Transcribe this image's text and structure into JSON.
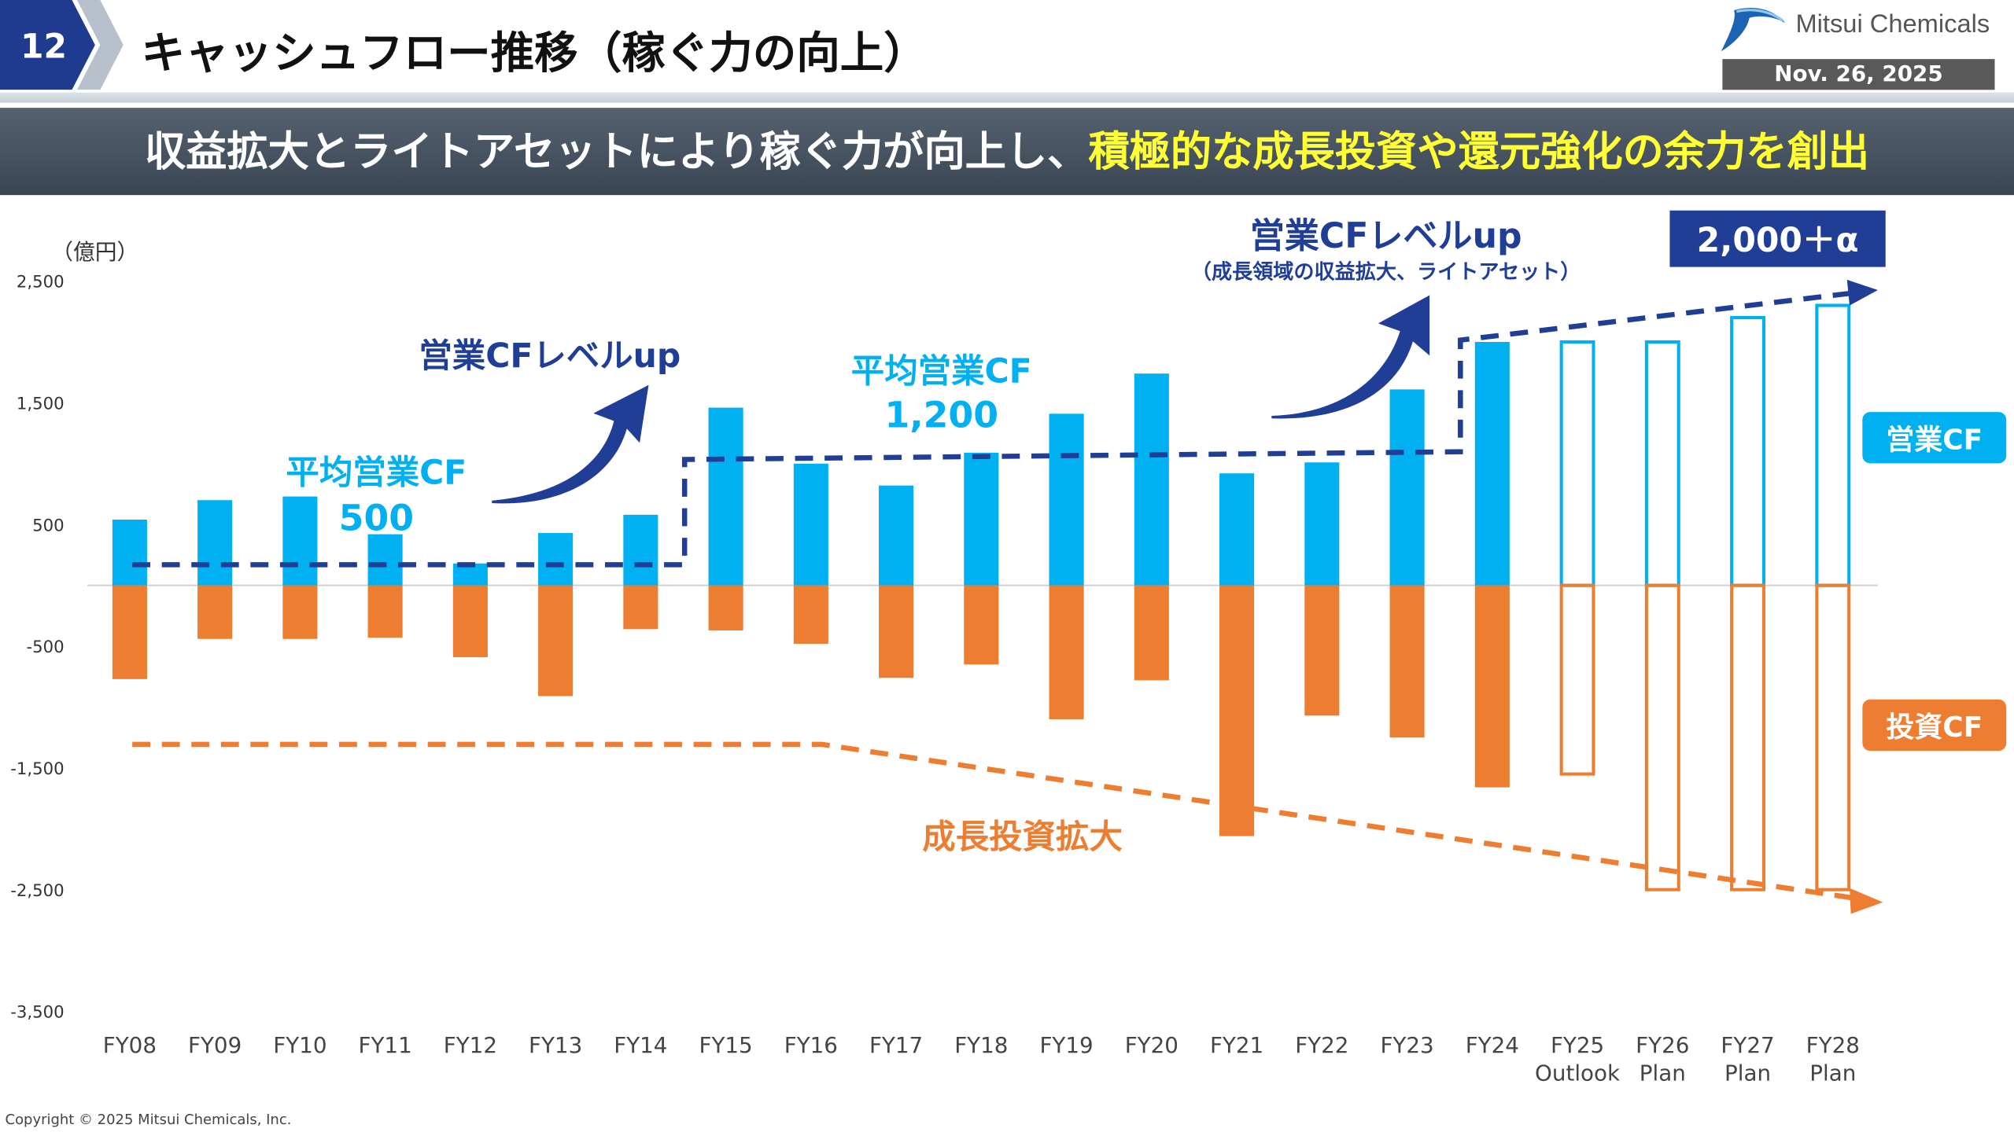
{
  "header": {
    "page_number": "12",
    "title": "キャッシュフロー推移（稼ぐ力の向上）",
    "logo_text": "Mitsui Chemicals",
    "date": "Nov. 26, 2025"
  },
  "banner": {
    "text_main": "収益拡大とライトアセットにより稼ぐ力が向上し、",
    "text_highlight": "積極的な成長投資や還元強化の余力を創出"
  },
  "footer": {
    "copyright": "Copyright © 2025 Mitsui Chemicals, Inc."
  },
  "colors": {
    "operating_cf": "#00b0f0",
    "investing_cf": "#ed7d31",
    "navy": "#203e96",
    "banner": "#3b4654",
    "highlight": "#ffff33"
  },
  "chart_data": {
    "type": "bar",
    "unit_label": "（億円）",
    "ylim": [
      -3500,
      2500
    ],
    "yticks": [
      2500,
      1500,
      500,
      -500,
      -1500,
      -2500,
      -3500
    ],
    "ytick_labels": [
      "2,500",
      "1,500",
      "500",
      "-500",
      "-1,500",
      "-2,500",
      "-3,500"
    ],
    "categories": [
      "FY08",
      "FY09",
      "FY10",
      "FY11",
      "FY12",
      "FY13",
      "FY14",
      "FY15",
      "FY16",
      "FY17",
      "FY18",
      "FY19",
      "FY20",
      "FY21",
      "FY22",
      "FY23",
      "FY24",
      "FY25",
      "FY26",
      "FY27",
      "FY28"
    ],
    "category_sublabels": [
      "",
      "",
      "",
      "",
      "",
      "",
      "",
      "",
      "",
      "",
      "",
      "",
      "",
      "",
      "",
      "",
      "",
      "Outlook",
      "Plan",
      "Plan",
      "Plan"
    ],
    "forecast_from_index": 17,
    "series": [
      {
        "name": "営業CF",
        "values": [
          540,
          700,
          730,
          420,
          180,
          430,
          580,
          1460,
          1000,
          820,
          1090,
          1410,
          1740,
          920,
          1010,
          1610,
          2000,
          2000,
          2000,
          2200,
          2300
        ]
      },
      {
        "name": "投資CF",
        "values": [
          -770,
          -440,
          -440,
          -430,
          -590,
          -910,
          -360,
          -370,
          -480,
          -760,
          -650,
          -1100,
          -780,
          -2060,
          -1070,
          -1250,
          -1660,
          -1550,
          -2500,
          -2500,
          -2500
        ]
      }
    ],
    "legend": {
      "operating": "営業CF",
      "investing": "投資CF",
      "placement": "right"
    },
    "annotations": {
      "avg1_label": "平均営業CF",
      "avg1_value": "500",
      "avg2_label": "平均営業CF",
      "avg2_value": "1,200",
      "level_up_1": "営業CFレベルup",
      "level_up_2": "営業CFレベルup",
      "level_up_2_sub": "（成長領域の収益拡大、ライトアセット）",
      "target": "2,000＋α",
      "growth_invest": "成長投資拡大"
    }
  }
}
